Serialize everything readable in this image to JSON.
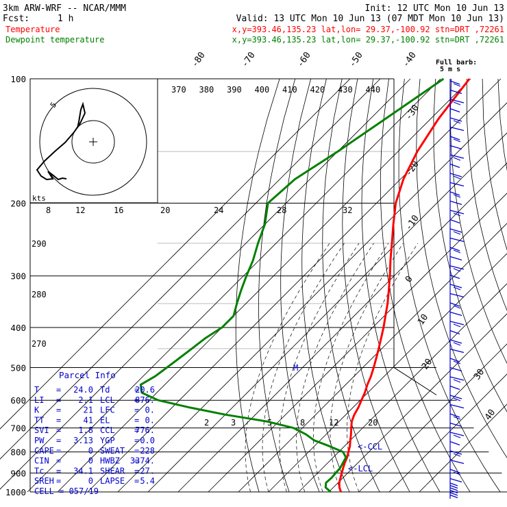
{
  "header": {
    "model": "3km ARW-WRF -- NCAR/MMM",
    "init": "Init: 12 UTC Mon 10 Jun 13",
    "fcst_label": "Fcst:",
    "fcst_value": "1 h",
    "valid": "Valid: 13 UTC Mon 10 Jun 13 (07 MDT Mon 10 Jun 13)",
    "lines": [
      {
        "label": "Temperature",
        "info": "x,y=393.46,135.23   lat,lon= 29.37,-100.92   stn=DRT ,72261",
        "color": "#ff0000"
      },
      {
        "label": "Dewpoint temperature",
        "info": "x,y=393.46,135.23   lat,lon= 29.37,-100.92   stn=DRT ,72261",
        "color": "#008000"
      }
    ]
  },
  "wind_key": {
    "line1": "Full barb:",
    "line2": "5 m s"
  },
  "hodograph": {
    "units": "kts",
    "ring_label": "5"
  },
  "parcel_info": {
    "title": "Parcel Info",
    "rows": [
      {
        "l1": "T",
        "v1": "24.0",
        "l2": "Td",
        "v2": "20.6"
      },
      {
        "l1": "LI",
        "v1": "2.1",
        "l2": "LCL",
        "v2": "876."
      },
      {
        "l1": "K",
        "v1": "21",
        "l2": "LFC",
        "v2": "0."
      },
      {
        "l1": "TT",
        "v1": "41",
        "l2": "EL",
        "v2": "0."
      },
      {
        "l1": "SVI",
        "v1": "1.8",
        "l2": "CCL",
        "v2": "776."
      },
      {
        "l1": "PW",
        "v1": "3.13",
        "l2": "YGP",
        "v2": "0.0"
      },
      {
        "l1": "CAPE",
        "v1": "0",
        "l2": "SWEAT",
        "v2": "228"
      },
      {
        "l1": "CIN",
        "v1": "0",
        "l2": "HWBZ",
        "v2": "3374."
      },
      {
        "l1": "Tc",
        "v1": "34.1",
        "l2": "SHEAR",
        "v2": "27."
      },
      {
        "l1": "SREH",
        "v1": "0",
        "l2": "LAPSE",
        "v2": "5.4"
      }
    ],
    "cell": "CELL = 057/19"
  },
  "chart_data": {
    "type": "line",
    "title": "",
    "diagram": "skew-T log-P",
    "ylabel": "",
    "y_scale": "log",
    "ylim": [
      1000,
      100
    ],
    "pressure_ticks": [
      "100",
      "200",
      "300",
      "400",
      "500",
      "600",
      "700",
      "800",
      "900",
      "1000"
    ],
    "isotherm_labels": [
      "-80",
      "-70",
      "-60",
      "-50",
      "-40",
      "-30",
      "-20",
      "-10",
      "0",
      "10",
      "20",
      "30",
      "40"
    ],
    "theta_labels": [
      "370",
      "380",
      "390",
      "400",
      "410",
      "420",
      "430",
      "440"
    ],
    "theta_left_labels": [
      "290",
      "280",
      "270"
    ],
    "mixing_ratio_labels_upper": [
      "8",
      "12",
      "16",
      "20",
      "24",
      "28",
      "32"
    ],
    "mixing_ratio_labels_lower": [
      "2",
      "3",
      "5",
      "8",
      "12",
      "20"
    ],
    "markers": [
      "M",
      "<-CCL",
      "<-LCL"
    ],
    "series": [
      {
        "name": "Temperature",
        "color": "#ff0000",
        "points": [
          [
            1000,
            24.0
          ],
          [
            975,
            22.0
          ],
          [
            950,
            20.4
          ],
          [
            925,
            19.2
          ],
          [
            900,
            18.0
          ],
          [
            875,
            16.8
          ],
          [
            850,
            15.6
          ],
          [
            825,
            14.6
          ],
          [
            800,
            13.2
          ],
          [
            775,
            11.8
          ],
          [
            750,
            10.0
          ],
          [
            725,
            8.2
          ],
          [
            700,
            6.2
          ],
          [
            675,
            4.2
          ],
          [
            650,
            2.8
          ],
          [
            625,
            1.8
          ],
          [
            600,
            0.4
          ],
          [
            575,
            -1.0
          ],
          [
            550,
            -2.8
          ],
          [
            525,
            -4.4
          ],
          [
            500,
            -6.4
          ],
          [
            475,
            -8.6
          ],
          [
            450,
            -11.0
          ],
          [
            425,
            -13.6
          ],
          [
            400,
            -16.4
          ],
          [
            375,
            -19.6
          ],
          [
            350,
            -23.0
          ],
          [
            325,
            -27.0
          ],
          [
            300,
            -31.4
          ],
          [
            275,
            -36.4
          ],
          [
            250,
            -41.6
          ],
          [
            225,
            -47.4
          ],
          [
            200,
            -53.6
          ],
          [
            175,
            -59.0
          ],
          [
            150,
            -63.6
          ],
          [
            125,
            -67.4
          ],
          [
            100,
            -70.4
          ]
        ]
      },
      {
        "name": "Dewpoint temperature",
        "color": "#008000",
        "points": [
          [
            1000,
            20.6
          ],
          [
            975,
            17.4
          ],
          [
            950,
            16.0
          ],
          [
            925,
            16.2
          ],
          [
            900,
            16.0
          ],
          [
            875,
            15.8
          ],
          [
            850,
            15.0
          ],
          [
            825,
            14.2
          ],
          [
            800,
            11.4
          ],
          [
            775,
            5.0
          ],
          [
            750,
            -2.0
          ],
          [
            725,
            -6.8
          ],
          [
            700,
            -13.0
          ],
          [
            675,
            -24.0
          ],
          [
            650,
            -40.0
          ],
          [
            625,
            -54.0
          ],
          [
            600,
            -67.0
          ],
          [
            575,
            -75.0
          ],
          [
            550,
            -78.0
          ],
          [
            525,
            -76.0
          ],
          [
            500,
            -75.0
          ],
          [
            475,
            -74.0
          ],
          [
            450,
            -73.0
          ],
          [
            425,
            -72.0
          ],
          [
            400,
            -70.0
          ],
          [
            375,
            -70.0
          ],
          [
            350,
            -73.0
          ],
          [
            325,
            -76.0
          ],
          [
            300,
            -79.0
          ],
          [
            275,
            -82.0
          ],
          [
            250,
            -86.0
          ],
          [
            225,
            -90.0
          ],
          [
            200,
            -96.0
          ],
          [
            175,
            -95.0
          ],
          [
            150,
            -90.0
          ],
          [
            125,
            -85.0
          ],
          [
            100,
            -79.0
          ]
        ]
      }
    ],
    "wind_barbs": "right column, 100-1000 hPa"
  }
}
